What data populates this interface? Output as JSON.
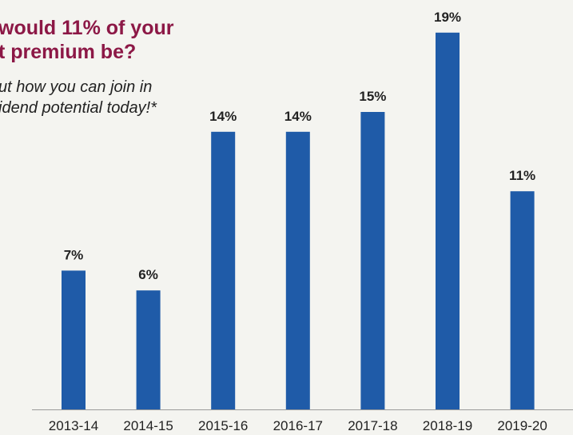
{
  "promo": {
    "headline_line1": "would 11% of your",
    "headline_line2": "t premium be?",
    "tagline_line1": "ut how you can join in",
    "tagline_line2": "idend potential today!*"
  },
  "colors": {
    "bar": "#1f5ba8",
    "headline": "#8c1846",
    "text": "#222222",
    "baseline": "#9a9a9a"
  },
  "chart_data": {
    "type": "bar",
    "categories": [
      "2013-14",
      "2014-15",
      "2015-16",
      "2016-17",
      "2017-18",
      "2018-19",
      "2019-20"
    ],
    "values": [
      7,
      6,
      14,
      14,
      15,
      19,
      11
    ],
    "data_labels": [
      "7%",
      "6%",
      "14%",
      "14%",
      "15%",
      "19%",
      "11%"
    ],
    "unit": "%",
    "title": "",
    "xlabel": "",
    "ylabel": "",
    "ylim": [
      0,
      20
    ],
    "grid": false,
    "legend": "none"
  }
}
